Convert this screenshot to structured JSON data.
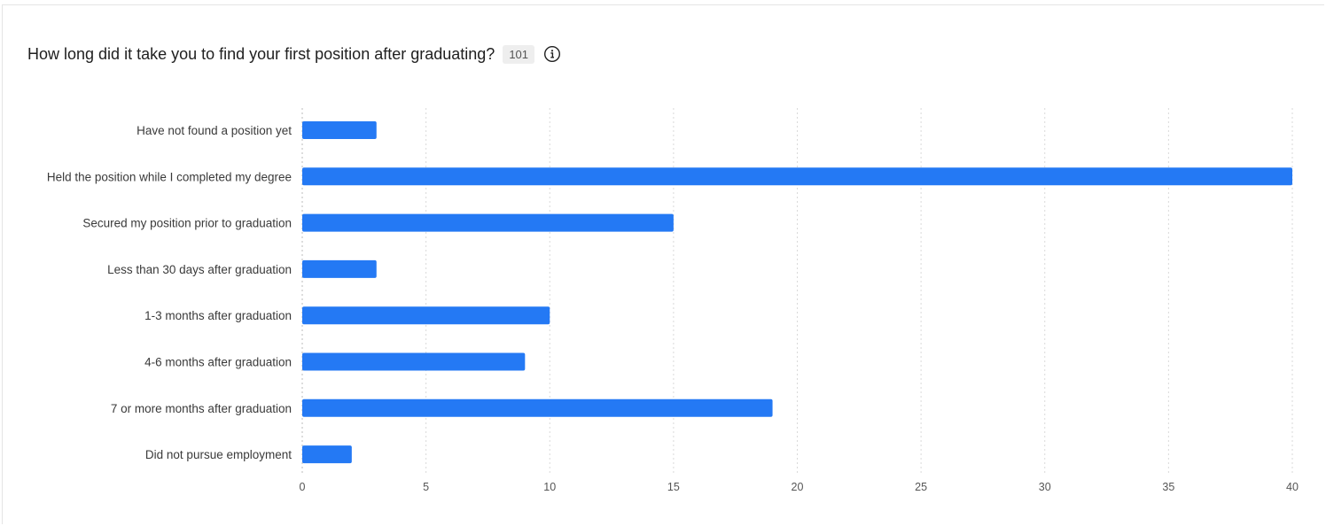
{
  "question": {
    "title": "How long did it take you to find your first position after graduating?",
    "response_count": "101",
    "info_icon": "info-circle-icon"
  },
  "colors": {
    "bar": "#2479f4",
    "grid": "#d9d9d9",
    "axis": "#bbbbbb"
  },
  "chart_data": {
    "type": "bar",
    "orientation": "horizontal",
    "title": "How long did it take you to find your first position after graduating?",
    "categories": [
      "Have not found a position yet",
      "Held the position while I completed my degree",
      "Secured my position prior to graduation",
      "Less than 30 days after graduation",
      "1-3 months after graduation",
      "4-6 months after graduation",
      "7 or more months after graduation",
      "Did not pursue employment"
    ],
    "values": [
      3,
      40,
      15,
      3,
      10,
      9,
      19,
      2
    ],
    "xlim": [
      0,
      40
    ],
    "xticks": [
      0,
      5,
      10,
      15,
      20,
      25,
      30,
      35,
      40
    ],
    "xlabel": "",
    "ylabel": "",
    "grid": true,
    "grid_style": "dotted-vertical"
  }
}
